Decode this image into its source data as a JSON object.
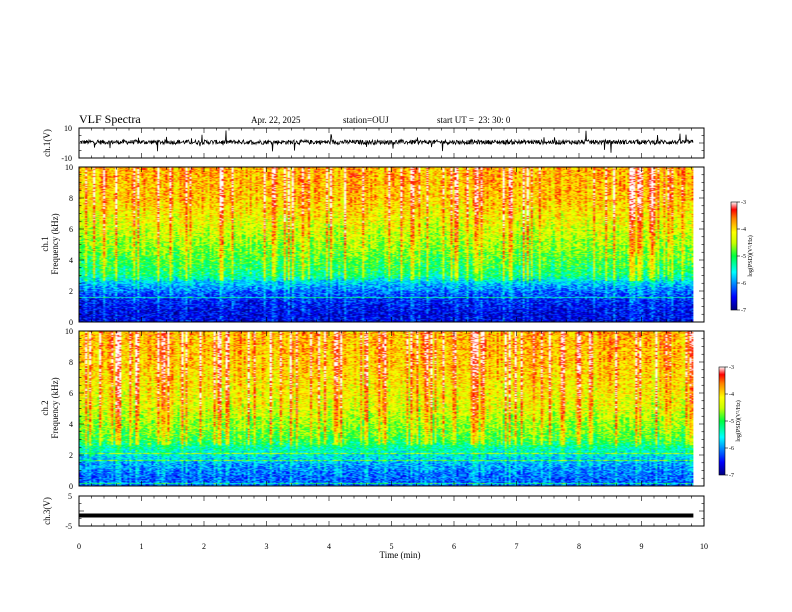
{
  "header": {
    "title": "VLF Spectra",
    "date": "Apr. 22, 2025",
    "station": "station=OUJ",
    "start_ut": "start UT =  23: 30: 0"
  },
  "chart_data": [
    {
      "type": "line",
      "name": "ch1-waveform",
      "ylabel": "ch.1(V)",
      "ylim": [
        -10,
        10
      ],
      "ytick_labels": [
        "-10",
        "10"
      ],
      "xlim": [
        0,
        10
      ]
    },
    {
      "type": "heatmap",
      "name": "ch1-spectrogram",
      "ylabel_top": "ch.1",
      "ylabel": "Frequency (kHz)",
      "ylim": [
        0,
        10
      ],
      "ytick_labels": [
        "0",
        "2",
        "4",
        "6",
        "8",
        "10"
      ],
      "xlim": [
        0,
        10
      ],
      "colorbar": {
        "label": "log(PSD)(V²/Hz)",
        "range": [
          -7,
          -3
        ],
        "tick_labels": [
          "-3",
          "-4",
          "-5",
          "-6",
          "-7"
        ]
      },
      "band_profile": [
        {
          "freq_khz": 0.5,
          "log_psd": -6.6
        },
        {
          "freq_khz": 1.5,
          "log_psd": -6.4
        },
        {
          "freq_khz": 2.5,
          "log_psd": -5.8
        },
        {
          "freq_khz": 3.0,
          "log_psd": -5.2
        },
        {
          "freq_khz": 5.0,
          "log_psd": -4.6
        },
        {
          "freq_khz": 8.0,
          "log_psd": -3.9
        },
        {
          "freq_khz": 10.0,
          "log_psd": -3.8
        }
      ]
    },
    {
      "type": "heatmap",
      "name": "ch2-spectrogram",
      "ylabel_top": "ch.2",
      "ylabel": "Frequency (kHz)",
      "ylim": [
        0,
        10
      ],
      "ytick_labels": [
        "0",
        "2",
        "4",
        "6",
        "8",
        "10"
      ],
      "xlim": [
        0,
        10
      ],
      "colorbar": {
        "label": "log(PSD)(V²/Hz)",
        "range": [
          -7,
          -3
        ],
        "tick_labels": [
          "-3",
          "-4",
          "-5",
          "-6",
          "-7"
        ]
      },
      "band_profile": [
        {
          "freq_khz": 0.5,
          "log_psd": -6.2
        },
        {
          "freq_khz": 1.5,
          "log_psd": -5.9
        },
        {
          "freq_khz": 2.5,
          "log_psd": -5.3
        },
        {
          "freq_khz": 3.0,
          "log_psd": -4.9
        },
        {
          "freq_khz": 5.0,
          "log_psd": -4.3
        },
        {
          "freq_khz": 8.0,
          "log_psd": -3.9
        },
        {
          "freq_khz": 10.0,
          "log_psd": -3.8
        }
      ]
    },
    {
      "type": "line",
      "name": "ch3-waveform",
      "ylabel": "ch.3(V)",
      "ylim": [
        -5,
        5
      ],
      "ytick_labels": [
        "-5",
        "5"
      ],
      "xlim": [
        0,
        10
      ],
      "level_v": -1.5
    }
  ],
  "xaxis": {
    "label": "Time (min)",
    "range": [
      0,
      10
    ],
    "tick_labels": [
      "0",
      "1",
      "2",
      "3",
      "4",
      "5",
      "6",
      "7",
      "8",
      "9",
      "10"
    ],
    "data_end_min": 9.83
  }
}
